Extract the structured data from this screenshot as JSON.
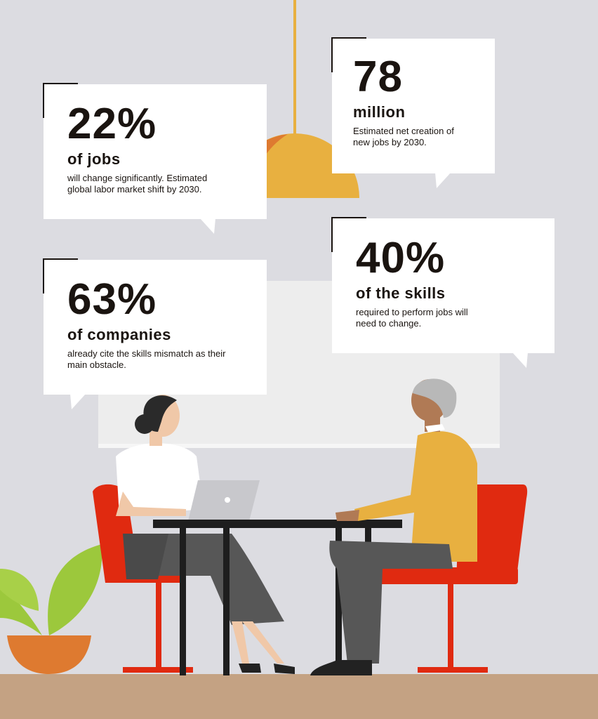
{
  "stats": [
    {
      "number": "22%",
      "subtitle": "of jobs",
      "description": "will change significantly. Estimated global labor market shift by 2030."
    },
    {
      "number": "78",
      "subtitle": "million",
      "description": "Estimated net creation of new jobs by 2030."
    },
    {
      "number": "63%",
      "subtitle": "of companies",
      "description": "already cite the skills mismatch as their main obstacle."
    },
    {
      "number": "40%",
      "subtitle": "of the skills",
      "description": "required to perform jobs will need to change."
    }
  ],
  "colors": {
    "background": "#dcdce1",
    "floor": "#c4a283",
    "lamp": "#e8b040",
    "lamp_shade_dark": "#de7a30",
    "chair": "#e02a10",
    "sweater": "#e8b040",
    "plant": "#9cc83c",
    "pot": "#de7a30"
  }
}
